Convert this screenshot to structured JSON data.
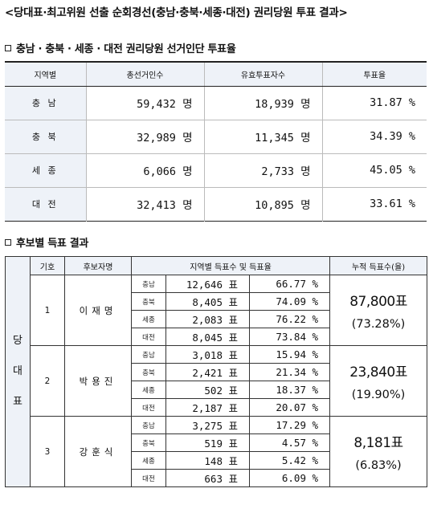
{
  "title": "<당대표·최고위원 선출 순회경선(충남·충북·세종·대전) 권리당원 투표 결과>",
  "section1": {
    "heading": "충남 · 충북 · 세종 · 대전 권리당원 선거인단 투표율",
    "headers": [
      "지역별",
      "총선거인수",
      "유효투표자수",
      "투표율"
    ],
    "rows": [
      {
        "region": "충 남",
        "voters": "59,432 명",
        "valid": "18,939 명",
        "rate": "31.87 %"
      },
      {
        "region": "충 북",
        "voters": "32,989 명",
        "valid": "11,345 명",
        "rate": "34.39 %"
      },
      {
        "region": "세 종",
        "voters": "6,066 명",
        "valid": "2,733 명",
        "rate": "45.05 %"
      },
      {
        "region": "대 전",
        "voters": "32,413 명",
        "valid": "10,895 명",
        "rate": "33.61 %"
      }
    ]
  },
  "section2": {
    "heading": "후보별 득표 결과",
    "headers": {
      "no": "기호",
      "name": "후보자명",
      "regional": "지역별 득표수 및 득표율",
      "total": "누적 득표수(율)"
    },
    "side_label": [
      "당",
      "대",
      "표"
    ],
    "candidates": [
      {
        "no": "1",
        "name": "이재명",
        "total_votes": "87,800표",
        "total_pct": "(73.28%)",
        "regions": [
          {
            "region": "충남",
            "votes": "12,646 표",
            "pct": "66.77 %"
          },
          {
            "region": "충북",
            "votes": "8,405 표",
            "pct": "74.09 %"
          },
          {
            "region": "세종",
            "votes": "2,083 표",
            "pct": "76.22 %"
          },
          {
            "region": "대전",
            "votes": "8,045 표",
            "pct": "73.84 %"
          }
        ]
      },
      {
        "no": "2",
        "name": "박용진",
        "total_votes": "23,840표",
        "total_pct": "(19.90%)",
        "regions": [
          {
            "region": "충남",
            "votes": "3,018 표",
            "pct": "15.94 %"
          },
          {
            "region": "충북",
            "votes": "2,421 표",
            "pct": "21.34 %"
          },
          {
            "region": "세종",
            "votes": "502 표",
            "pct": "18.37 %"
          },
          {
            "region": "대전",
            "votes": "2,187 표",
            "pct": "20.07 %"
          }
        ]
      },
      {
        "no": "3",
        "name": "강훈식",
        "total_votes": "8,181표",
        "total_pct": "(6.83%)",
        "regions": [
          {
            "region": "충남",
            "votes": "3,275 표",
            "pct": "17.29 %"
          },
          {
            "region": "충북",
            "votes": "519 표",
            "pct": "4.57 %"
          },
          {
            "region": "세종",
            "votes": "148 표",
            "pct": "5.42 %"
          },
          {
            "region": "대전",
            "votes": "663 표",
            "pct": "6.09 %"
          }
        ]
      }
    ]
  }
}
